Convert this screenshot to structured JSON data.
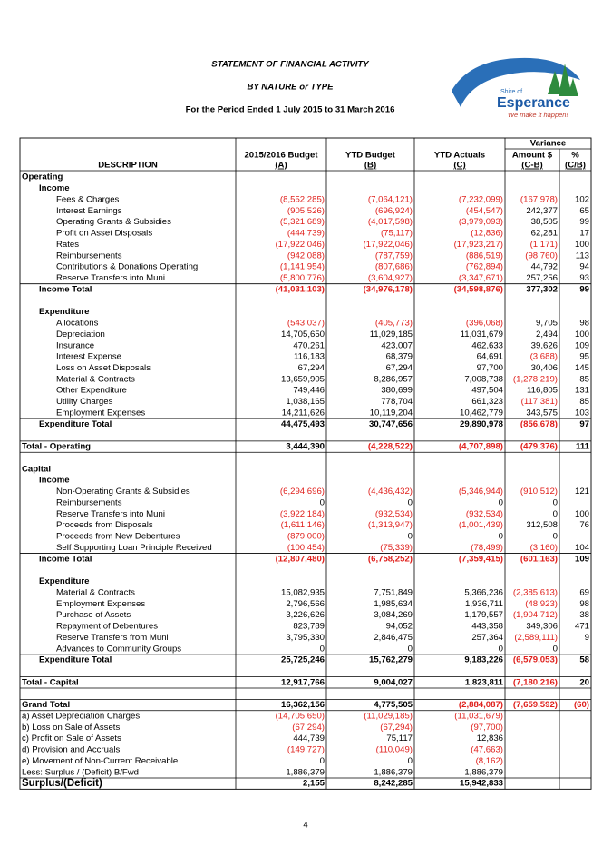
{
  "header": {
    "title": "STATEMENT OF FINANCIAL ACTIVITY",
    "subtitle": "BY NATURE or TYPE",
    "period": "For the Period Ended 1 July 2015 to 31 March 2016"
  },
  "logo": {
    "line1": "Shire of",
    "line2": "Esperance",
    "tagline": "We make it happen!"
  },
  "table": {
    "variance": "Variance",
    "columns": [
      [
        "DESCRIPTION"
      ],
      [
        "2015/2016 Budget",
        "(A)"
      ],
      [
        "YTD Budget",
        "(B)"
      ],
      [
        "YTD Actuals",
        "(C)"
      ],
      [
        "Amount $",
        "(C-B)"
      ],
      [
        "%",
        "(C/B)"
      ]
    ],
    "sections": [
      {
        "title": "Operating",
        "groups": [
          {
            "title": "Income",
            "items": [
              {
                "label": "Fees & Charges",
                "values": [
                  "(8,552,285)",
                  "(7,064,121)",
                  "(7,232,099)",
                  "(167,978)",
                  "102"
                ]
              },
              {
                "label": "Interest Earnings",
                "values": [
                  "(905,526)",
                  "(696,924)",
                  "(454,547)",
                  "242,377",
                  "65"
                ]
              },
              {
                "label": "Operating Grants & Subsidies",
                "values": [
                  "(5,321,689)",
                  "(4,017,598)",
                  "(3,979,093)",
                  "38,505",
                  "99"
                ]
              },
              {
                "label": "Profit on Asset Disposals",
                "values": [
                  "(444,739)",
                  "(75,117)",
                  "(12,836)",
                  "62,281",
                  "17"
                ]
              },
              {
                "label": "Rates",
                "values": [
                  "(17,922,046)",
                  "(17,922,046)",
                  "(17,923,217)",
                  "(1,171)",
                  "100"
                ]
              },
              {
                "label": "Reimbursements",
                "values": [
                  "(942,088)",
                  "(787,759)",
                  "(886,519)",
                  "(98,760)",
                  "113"
                ]
              },
              {
                "label": "Contributions & Donations Operating",
                "values": [
                  "(1,141,954)",
                  "(807,686)",
                  "(762,894)",
                  "44,792",
                  "94"
                ]
              },
              {
                "label": "Reserve Transfers into Muni",
                "values": [
                  "(5,800,776)",
                  "(3,604,927)",
                  "(3,347,671)",
                  "257,256",
                  "93"
                ]
              }
            ],
            "total": {
              "label": "Income Total",
              "values": [
                "(41,031,103)",
                "(34,976,178)",
                "(34,598,876)",
                "377,302",
                "99"
              ]
            }
          },
          {
            "title": "Expenditure",
            "items": [
              {
                "label": "Allocations",
                "values": [
                  "(543,037)",
                  "(405,773)",
                  "(396,068)",
                  "9,705",
                  "98"
                ]
              },
              {
                "label": "Depreciation",
                "values": [
                  "14,705,650",
                  "11,029,185",
                  "11,031,679",
                  "2,494",
                  "100"
                ]
              },
              {
                "label": "Insurance",
                "values": [
                  "470,261",
                  "423,007",
                  "462,633",
                  "39,626",
                  "109"
                ]
              },
              {
                "label": "Interest Expense",
                "values": [
                  "116,183",
                  "68,379",
                  "64,691",
                  "(3,688)",
                  "95"
                ]
              },
              {
                "label": "Loss on Asset Disposals",
                "values": [
                  "67,294",
                  "67,294",
                  "97,700",
                  "30,406",
                  "145"
                ]
              },
              {
                "label": "Material & Contracts",
                "values": [
                  "13,659,905",
                  "8,286,957",
                  "7,008,738",
                  "(1,278,219)",
                  "85"
                ]
              },
              {
                "label": "Other Expenditure",
                "values": [
                  "749,446",
                  "380,699",
                  "497,504",
                  "116,805",
                  "131"
                ]
              },
              {
                "label": "Utility Charges",
                "values": [
                  "1,038,165",
                  "778,704",
                  "661,323",
                  "(117,381)",
                  "85"
                ]
              },
              {
                "label": "Employment Expenses",
                "values": [
                  "14,211,626",
                  "10,119,204",
                  "10,462,779",
                  "343,575",
                  "103"
                ]
              }
            ],
            "total": {
              "label": "Expenditure Total",
              "values": [
                "44,475,493",
                "30,747,656",
                "29,890,978",
                "(856,678)",
                "97"
              ]
            }
          }
        ],
        "total": {
          "label": "Total - Operating",
          "values": [
            "3,444,390",
            "(4,228,522)",
            "(4,707,898)",
            "(479,376)",
            "111"
          ]
        }
      },
      {
        "title": "Capital",
        "groups": [
          {
            "title": "Income",
            "items": [
              {
                "label": "Non-Operating Grants & Subsidies",
                "values": [
                  "(6,294,696)",
                  "(4,436,432)",
                  "(5,346,944)",
                  "(910,512)",
                  "121"
                ]
              },
              {
                "label": "Reimbursements",
                "values": [
                  "0",
                  "0",
                  "0",
                  "0"
                ]
              },
              {
                "label": "Reserve Transfers into Muni",
                "values": [
                  "(3,922,184)",
                  "(932,534)",
                  "(932,534)",
                  "0",
                  "100"
                ]
              },
              {
                "label": "Proceeds from Disposals",
                "values": [
                  "(1,611,146)",
                  "(1,313,947)",
                  "(1,001,439)",
                  "312,508",
                  "76"
                ]
              },
              {
                "label": "Proceeds from New Debentures",
                "values": [
                  "(879,000)",
                  "0",
                  "0",
                  "0"
                ]
              },
              {
                "label": "Self Supporting Loan Principle Received",
                "values": [
                  "(100,454)",
                  "(75,339)",
                  "(78,499)",
                  "(3,160)",
                  "104"
                ]
              }
            ],
            "total": {
              "label": "Income Total",
              "values": [
                "(12,807,480)",
                "(6,758,252)",
                "(7,359,415)",
                "(601,163)",
                "109"
              ]
            }
          },
          {
            "title": "Expenditure",
            "items": [
              {
                "label": "Material & Contracts",
                "values": [
                  "15,082,935",
                  "7,751,849",
                  "5,366,236",
                  "(2,385,613)",
                  "69"
                ]
              },
              {
                "label": "Employment Expenses",
                "values": [
                  "2,796,566",
                  "1,985,634",
                  "1,936,711",
                  "(48,923)",
                  "98"
                ]
              },
              {
                "label": "Purchase of Assets",
                "values": [
                  "3,226,626",
                  "3,084,269",
                  "1,179,557",
                  "(1,904,712)",
                  "38"
                ]
              },
              {
                "label": "Repayment of Debentures",
                "values": [
                  "823,789",
                  "94,052",
                  "443,358",
                  "349,306",
                  "471"
                ]
              },
              {
                "label": "Reserve Transfers from Muni",
                "values": [
                  "3,795,330",
                  "2,846,475",
                  "257,364",
                  "(2,589,111)",
                  "9"
                ]
              },
              {
                "label": "Advances to Community Groups",
                "values": [
                  "0",
                  "0",
                  "0",
                  "0"
                ]
              }
            ],
            "total": {
              "label": "Expenditure Total",
              "values": [
                "25,725,246",
                "15,762,279",
                "9,183,226",
                "(6,579,053)",
                "58"
              ]
            }
          }
        ],
        "total": {
          "label": "Total - Capital",
          "values": [
            "12,917,766",
            "9,004,027",
            "1,823,811",
            "(7,180,216)",
            "20"
          ]
        }
      }
    ],
    "grand_total": {
      "label": "Grand Total",
      "values": [
        "16,362,156",
        "4,775,505",
        "(2,884,087)",
        "(7,659,592)",
        "(60)"
      ]
    },
    "adjustments": [
      {
        "label": "a) Asset Depreciation Charges",
        "values": [
          "(14,705,650)",
          "(11,029,185)",
          "(11,031,679)"
        ]
      },
      {
        "label": "b) Loss on Sale of Assets",
        "values": [
          "(67,294)",
          "(67,294)",
          "(97,700)"
        ]
      },
      {
        "label": "c) Profit on Sale of Assets",
        "values": [
          "444,739",
          "75,117",
          "12,836"
        ]
      },
      {
        "label": "d) Provision and Accruals",
        "values": [
          "(149,727)",
          "(110,049)",
          "(47,663)"
        ]
      },
      {
        "label": "e) Movement of Non-Current Receivable",
        "values": [
          "0",
          "0",
          "(8,162)"
        ]
      },
      {
        "label": "Less: Surplus / (Deficit) B/Fwd",
        "values": [
          "1,886,379",
          "1,886,379",
          "1,886,379"
        ]
      }
    ],
    "surplus": {
      "label": "Surplus/(Deficit)",
      "values": [
        "2,155",
        "8,242,285",
        "15,942,833"
      ]
    }
  },
  "page_number": "4"
}
